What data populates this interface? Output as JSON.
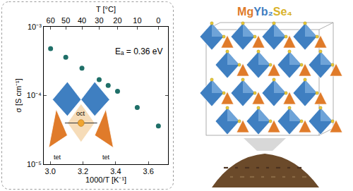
{
  "chart_data": {
    "type": "scatter",
    "x_label": "1000/T [K⁻¹]",
    "y_label": "σ [S cm⁻¹]",
    "x": [
      3.0017,
      3.0945,
      3.1934,
      3.2987,
      3.354,
      3.4112,
      3.5317,
      3.661
    ],
    "values": [
      0.00048,
      0.00036,
      0.00025,
      0.00017,
      0.00014,
      0.000115,
      6.7e-05,
      3.6e-05
    ],
    "color": "#1f6f68",
    "marker": "circle",
    "log": "y",
    "grid": false,
    "xlim": [
      2.96,
      3.72
    ],
    "xticks": [
      {
        "value": 3.0,
        "label": "3.0"
      },
      {
        "value": 3.2,
        "label": "3.2"
      },
      {
        "value": 3.4,
        "label": "3.4"
      },
      {
        "value": 3.6,
        "label": "3.6"
      }
    ],
    "ylim": [
      1e-05,
      0.001
    ],
    "yticks": [
      {
        "value": 1e-05,
        "label": "10⁻⁵"
      },
      {
        "value": 0.0001,
        "label": "10⁻⁴"
      },
      {
        "value": 0.001,
        "label": "10⁻³"
      }
    ],
    "top_axis": {
      "title": "T [°C]",
      "ticks": [
        {
          "value": 3.0017,
          "label": "60"
        },
        {
          "value": 3.0945,
          "label": "50"
        },
        {
          "value": 3.1934,
          "label": "40"
        },
        {
          "value": 3.2987,
          "label": "30"
        },
        {
          "value": 3.4112,
          "label": "20"
        },
        {
          "value": 3.5317,
          "label": "10"
        },
        {
          "value": 3.661,
          "label": "0"
        }
      ]
    },
    "annotations": [
      "Eₐ = 0.36 eV"
    ],
    "inset_labels": [
      "tet",
      "oct",
      "tet"
    ],
    "compound": [
      "Mg",
      "Yb₂",
      "Se₄"
    ]
  }
}
